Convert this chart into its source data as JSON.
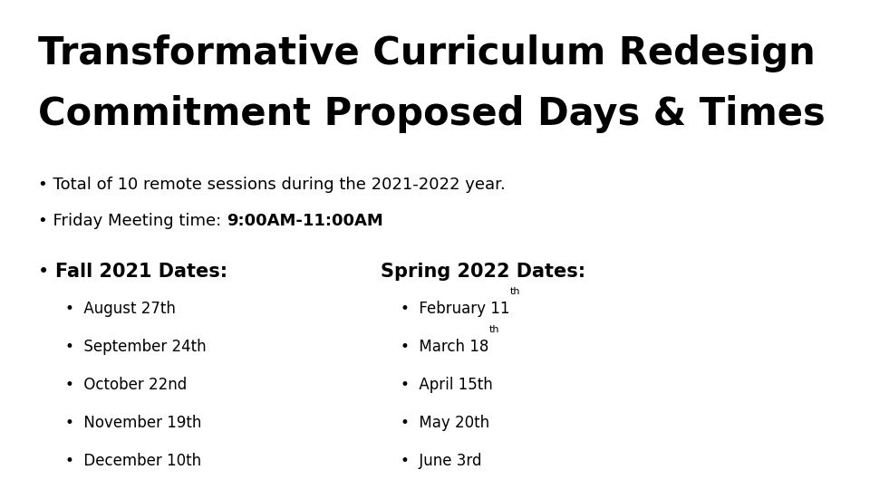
{
  "title_line1": "Transformative Curriculum Redesign",
  "title_line2": "Commitment Proposed Days & Times",
  "bullet1": "Total of 10 remote sessions during the 2021-2022 year.",
  "bullet2_normal": "Friday Meeting time: ",
  "bullet2_bold": "9:00AM-11:00AM",
  "fall_header": "Fall 2021 Dates:",
  "spring_header": "Spring 2022 Dates:",
  "fall_dates": [
    "August 27th",
    "September 24th",
    "October 22nd",
    "November 19th",
    "December 10th"
  ],
  "spring_dates_normal": [
    "February 11",
    "March 18",
    "April 15th",
    "May 20th",
    "June 3rd"
  ],
  "spring_dates_super": [
    "th",
    "th",
    "",
    "",
    ""
  ],
  "bg_color": "#ffffff",
  "text_color": "#000000",
  "title_fontsize": 30,
  "header_fontsize": 15,
  "body_fontsize": 13,
  "sub_fontsize": 12,
  "fig_width": 9.6,
  "fig_height": 5.4,
  "dpi": 100
}
